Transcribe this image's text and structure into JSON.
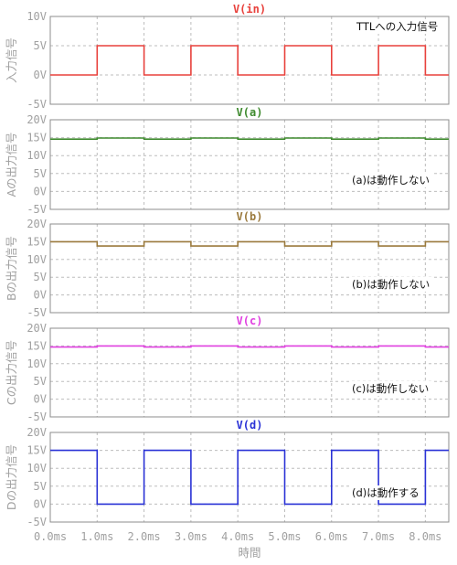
{
  "chart_data": [
    {
      "type": "line",
      "title": "V(in)",
      "ylabel": "入力信号",
      "annotation": "TTLへの入力信号",
      "color": "#e8413c",
      "yticks": [
        "10V",
        "5V",
        "0V",
        "-5V"
      ],
      "ylim": [
        -5,
        10
      ],
      "x": [
        0,
        1,
        1,
        2,
        2,
        3,
        3,
        4,
        4,
        5,
        5,
        6,
        6,
        7,
        7,
        8,
        8,
        8.5
      ],
      "y": [
        0,
        0,
        5,
        5,
        0,
        0,
        5,
        5,
        0,
        0,
        5,
        5,
        0,
        0,
        5,
        5,
        0,
        0
      ]
    },
    {
      "type": "line",
      "title": "V(a)",
      "ylabel": "Aの出力信号",
      "annotation": "(a)は動作しない",
      "color": "#3e8a2e",
      "yticks": [
        "20V",
        "15V",
        "10V",
        "5V",
        "0V",
        "-5V"
      ],
      "ylim": [
        -5,
        20
      ],
      "x": [
        0,
        1,
        1,
        2,
        2,
        3,
        3,
        4,
        4,
        5,
        5,
        6,
        6,
        7,
        7,
        8,
        8,
        8.5
      ],
      "y": [
        14.6,
        14.6,
        14.9,
        14.9,
        14.6,
        14.6,
        14.9,
        14.9,
        14.6,
        14.6,
        14.9,
        14.9,
        14.6,
        14.6,
        14.9,
        14.9,
        14.6,
        14.6
      ]
    },
    {
      "type": "line",
      "title": "V(b)",
      "ylabel": "Bの出力信号",
      "annotation": "(b)は動作しない",
      "color": "#9b7a3d",
      "yticks": [
        "20V",
        "15V",
        "10V",
        "5V",
        "0V",
        "-5V"
      ],
      "ylim": [
        -5,
        20
      ],
      "x": [
        0,
        1,
        1,
        2,
        2,
        3,
        3,
        4,
        4,
        5,
        5,
        6,
        6,
        7,
        7,
        8,
        8,
        8.5
      ],
      "y": [
        15,
        15,
        13.8,
        13.8,
        15,
        15,
        13.8,
        13.8,
        15,
        15,
        13.8,
        13.8,
        15,
        15,
        13.8,
        13.8,
        15,
        15
      ]
    },
    {
      "type": "line",
      "title": "V(c)",
      "ylabel": "Cの出力信号",
      "annotation": "(c)は動作しない",
      "color": "#e040e0",
      "yticks": [
        "20V",
        "15V",
        "10V",
        "5V",
        "0V",
        "-5V"
      ],
      "ylim": [
        -5,
        20
      ],
      "x": [
        0,
        1,
        1,
        2,
        2,
        3,
        3,
        4,
        4,
        5,
        5,
        6,
        6,
        7,
        7,
        8,
        8,
        8.5
      ],
      "y": [
        14.7,
        14.7,
        15.0,
        15.0,
        14.7,
        14.7,
        15.0,
        15.0,
        14.7,
        14.7,
        15.0,
        15.0,
        14.7,
        14.7,
        15.0,
        15.0,
        14.7,
        14.7
      ]
    },
    {
      "type": "line",
      "title": "V(d)",
      "ylabel": "Dの出力信号",
      "annotation": "(d)は動作する",
      "color": "#2a32d6",
      "yticks": [
        "20V",
        "15V",
        "10V",
        "5V",
        "0V",
        "-5V"
      ],
      "ylim": [
        -5,
        20
      ],
      "x": [
        0,
        1,
        1,
        2,
        2,
        3,
        3,
        4,
        4,
        5,
        5,
        6,
        6,
        7,
        7,
        8,
        8,
        8.5
      ],
      "y": [
        15,
        15,
        0,
        0,
        15,
        15,
        0,
        0,
        15,
        15,
        0,
        0,
        15,
        15,
        0,
        0,
        15,
        15
      ]
    }
  ],
  "xaxis": {
    "label": "時間",
    "ticks": [
      "0.0ms",
      "1.0ms",
      "2.0ms",
      "3.0ms",
      "4.0ms",
      "5.0ms",
      "6.0ms",
      "7.0ms",
      "8.0ms"
    ],
    "xlim": [
      0,
      8.5
    ]
  }
}
